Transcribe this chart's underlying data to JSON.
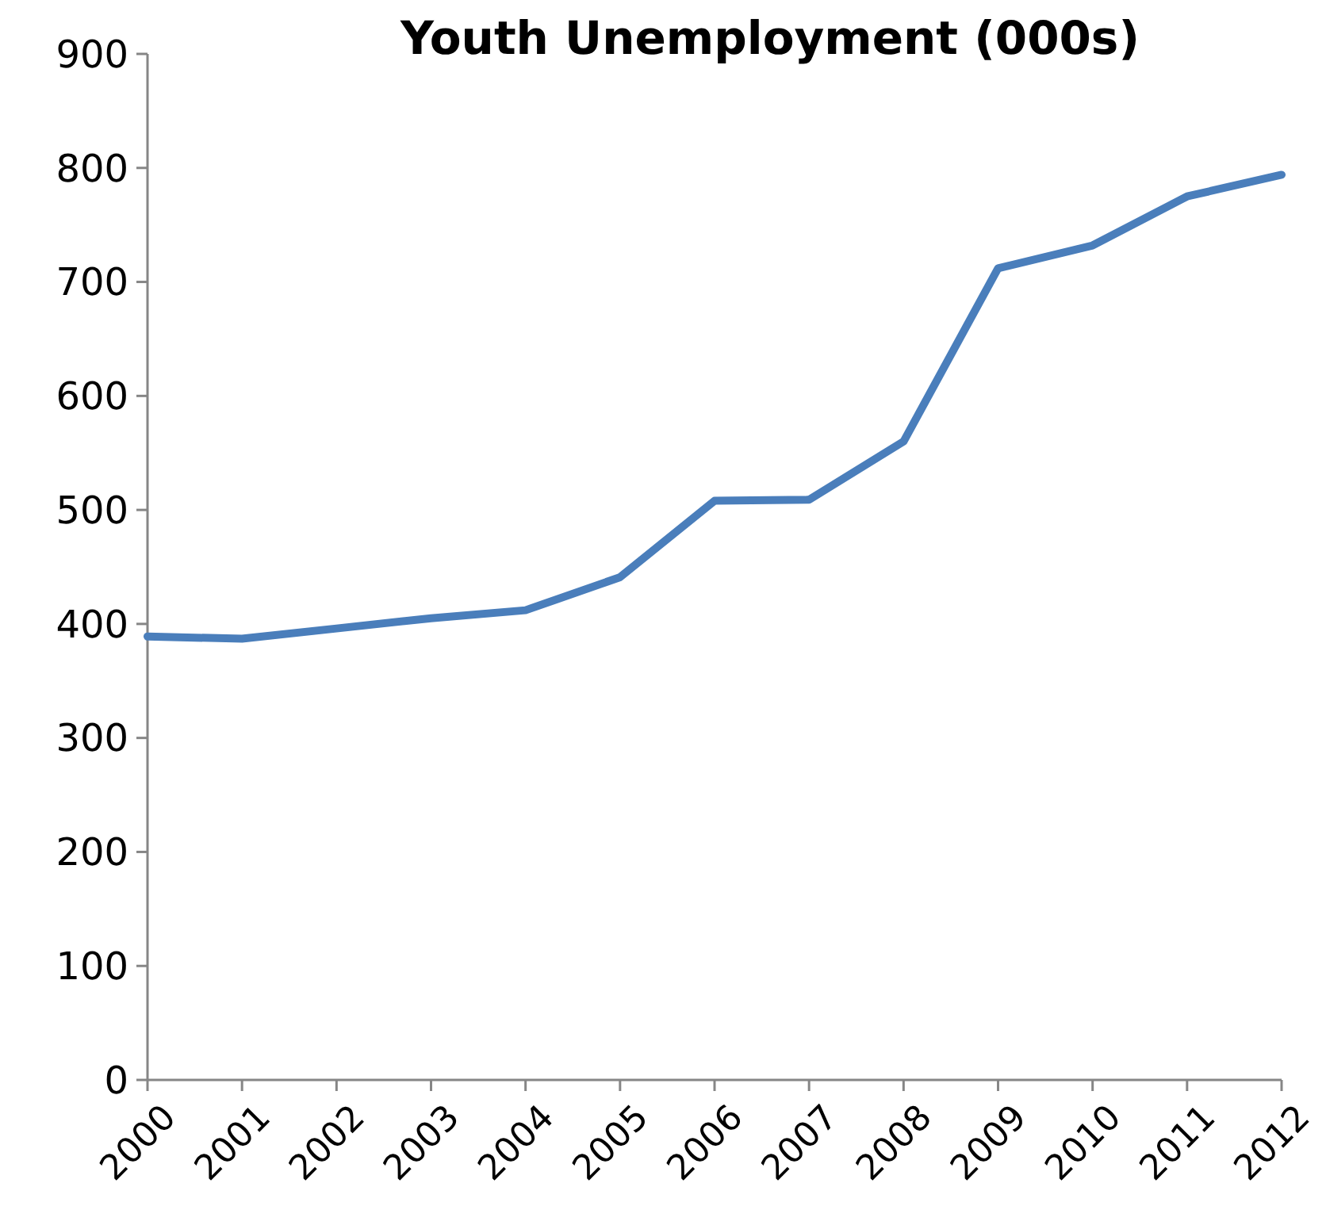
{
  "chart_data": {
    "type": "line",
    "title": "Youth Unemployment (000s)",
    "categories": [
      "2000",
      "2001",
      "2002",
      "2003",
      "2004",
      "2005",
      "2006",
      "2007",
      "2008",
      "2009",
      "2010",
      "2011",
      "2012"
    ],
    "series": [
      {
        "color": "#4a7ebb",
        "values": [
          389,
          387,
          396,
          405,
          412,
          441,
          508,
          509,
          560,
          712,
          732,
          775,
          794
        ]
      }
    ],
    "ylim": [
      0,
      900
    ],
    "yticks": [
      0,
      100,
      200,
      300,
      400,
      500,
      600,
      700,
      800,
      900
    ],
    "grid": false,
    "marker": "none",
    "line_style": "solid"
  }
}
